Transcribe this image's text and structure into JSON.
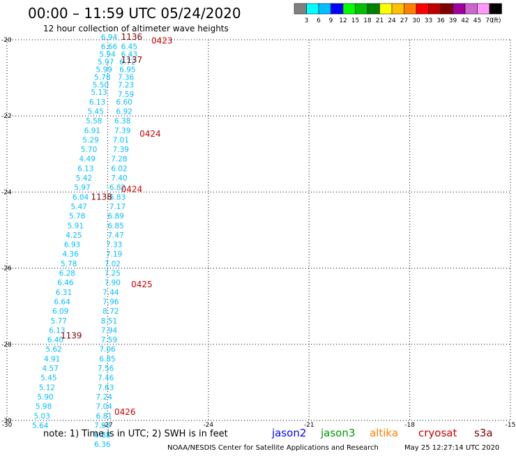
{
  "header": {
    "title": "00:00 – 11:59 UTC 05/24/2020",
    "subtitle": "12 hour collection of altimeter wave heights"
  },
  "colorbar": {
    "colors": [
      "#808080",
      "#00ffff",
      "#00bfff",
      "#0000ff",
      "#00ff00",
      "#00c000",
      "#008000",
      "#ffff00",
      "#ffc000",
      "#ff8000",
      "#ff0000",
      "#c00000",
      "#800000",
      "#a000a0",
      "#cc66cc",
      "#ff99ff",
      "#000000"
    ],
    "labels": [
      "3",
      "6",
      "9",
      "12",
      "15",
      "18",
      "21",
      "24",
      "27",
      "30",
      "33",
      "36",
      "39",
      "42",
      "45",
      "70"
    ],
    "unit": "(ft)"
  },
  "axes": {
    "x_ticks": [
      {
        "value": -30,
        "label": "-30"
      },
      {
        "value": -27,
        "label": "-27"
      },
      {
        "value": -24,
        "label": "-24"
      },
      {
        "value": -21,
        "label": "-21"
      },
      {
        "value": -18,
        "label": "-18"
      },
      {
        "value": -15,
        "label": "-15"
      }
    ],
    "y_ticks": [
      {
        "value": -20,
        "label": "-20"
      },
      {
        "value": -22,
        "label": "-22"
      },
      {
        "value": -24,
        "label": "-24"
      },
      {
        "value": -26,
        "label": "-26"
      },
      {
        "value": -28,
        "label": "-28"
      },
      {
        "value": -30,
        "label": "-30"
      }
    ],
    "xlim": [
      -30,
      -15
    ],
    "ylim": [
      -30,
      -20
    ]
  },
  "chart_data": {
    "type": "scatter",
    "x_axis": "longitude",
    "y_axis": "latitude",
    "xlim": [
      -30,
      -15
    ],
    "ylim": [
      -30,
      -20
    ],
    "grid": true,
    "swh_color": "#00bfff",
    "time_color": "#cc0000",
    "time_dark_color": "#800000",
    "track_a": [
      {
        "lon": -27.2,
        "lat": -20.0,
        "v": "6.94"
      },
      {
        "lon": -27.2,
        "lat": -20.25,
        "v": "6.66"
      },
      {
        "lon": -27.25,
        "lat": -20.45,
        "v": "5.94"
      },
      {
        "lon": -27.3,
        "lat": -20.65,
        "v": "5.97"
      },
      {
        "lon": -27.35,
        "lat": -20.85,
        "v": "5.99"
      },
      {
        "lon": -27.4,
        "lat": -21.05,
        "v": "5.78"
      },
      {
        "lon": -27.45,
        "lat": -21.25,
        "v": "5.50"
      },
      {
        "lon": -27.5,
        "lat": -21.45,
        "v": "5.13"
      },
      {
        "lon": -27.55,
        "lat": -21.7,
        "v": "6.13"
      },
      {
        "lon": -27.6,
        "lat": -21.95,
        "v": "5.45"
      },
      {
        "lon": -27.65,
        "lat": -22.2,
        "v": "5.58"
      },
      {
        "lon": -27.7,
        "lat": -22.45,
        "v": "6.91"
      },
      {
        "lon": -27.75,
        "lat": -22.7,
        "v": "5.29"
      },
      {
        "lon": -27.8,
        "lat": -22.95,
        "v": "5.70"
      },
      {
        "lon": -27.85,
        "lat": -23.2,
        "v": "4.49"
      },
      {
        "lon": -27.9,
        "lat": -23.45,
        "v": "6.13"
      },
      {
        "lon": -27.95,
        "lat": -23.7,
        "v": "5.42"
      },
      {
        "lon": -28.0,
        "lat": -23.95,
        "v": "5.97"
      },
      {
        "lon": -28.05,
        "lat": -24.2,
        "v": "6.04"
      },
      {
        "lon": -28.1,
        "lat": -24.45,
        "v": "5.47"
      },
      {
        "lon": -28.15,
        "lat": -24.7,
        "v": "5.78"
      },
      {
        "lon": -28.2,
        "lat": -24.95,
        "v": "5.91"
      },
      {
        "lon": -28.25,
        "lat": -25.2,
        "v": "4.25"
      },
      {
        "lon": -28.3,
        "lat": -25.45,
        "v": "6.93"
      },
      {
        "lon": -28.35,
        "lat": -25.7,
        "v": "4.36"
      },
      {
        "lon": -28.4,
        "lat": -25.95,
        "v": "5.78"
      },
      {
        "lon": -28.45,
        "lat": -26.2,
        "v": "6.28"
      },
      {
        "lon": -28.5,
        "lat": -26.45,
        "v": "6.46"
      },
      {
        "lon": -28.55,
        "lat": -26.7,
        "v": "6.31"
      },
      {
        "lon": -28.6,
        "lat": -26.95,
        "v": "6.64"
      },
      {
        "lon": -28.65,
        "lat": -27.2,
        "v": "6.09"
      },
      {
        "lon": -28.7,
        "lat": -27.45,
        "v": "5.77"
      },
      {
        "lon": -28.75,
        "lat": -27.7,
        "v": "6.13"
      },
      {
        "lon": -28.8,
        "lat": -27.95,
        "v": "6.40"
      },
      {
        "lon": -28.85,
        "lat": -28.2,
        "v": "5.62"
      },
      {
        "lon": -28.9,
        "lat": -28.45,
        "v": "4.91"
      },
      {
        "lon": -28.95,
        "lat": -28.7,
        "v": "4.57"
      },
      {
        "lon": -29.0,
        "lat": -28.95,
        "v": "5.45"
      },
      {
        "lon": -29.05,
        "lat": -29.2,
        "v": "5.12"
      },
      {
        "lon": -29.1,
        "lat": -29.45,
        "v": "5.90"
      },
      {
        "lon": -29.15,
        "lat": -29.7,
        "v": "5.98"
      },
      {
        "lon": -29.2,
        "lat": -29.95,
        "v": "5.03"
      },
      {
        "lon": -29.25,
        "lat": -30.2,
        "v": "5.64"
      }
    ],
    "track_b": [
      {
        "lon": -26.6,
        "lat": -20.25,
        "v": "6.45"
      },
      {
        "lon": -26.6,
        "lat": -20.45,
        "v": "6.43"
      },
      {
        "lon": -26.65,
        "lat": -20.65,
        "v": "6.72"
      },
      {
        "lon": -26.65,
        "lat": -20.85,
        "v": "6.95"
      },
      {
        "lon": -26.7,
        "lat": -21.05,
        "v": "7.36"
      },
      {
        "lon": -26.7,
        "lat": -21.25,
        "v": "7.23"
      },
      {
        "lon": -26.7,
        "lat": -21.5,
        "v": "7.59"
      },
      {
        "lon": -26.75,
        "lat": -21.7,
        "v": "6.60"
      },
      {
        "lon": -26.75,
        "lat": -21.95,
        "v": "6.92"
      },
      {
        "lon": -26.8,
        "lat": -22.2,
        "v": "6.38"
      },
      {
        "lon": -26.8,
        "lat": -22.45,
        "v": "7.39"
      },
      {
        "lon": -26.85,
        "lat": -22.7,
        "v": "7.01"
      },
      {
        "lon": -26.85,
        "lat": -22.95,
        "v": "7.39"
      },
      {
        "lon": -26.9,
        "lat": -23.2,
        "v": "7.28"
      },
      {
        "lon": -26.9,
        "lat": -23.45,
        "v": "6.02"
      },
      {
        "lon": -26.9,
        "lat": -23.7,
        "v": "7.40"
      },
      {
        "lon": -26.95,
        "lat": -23.95,
        "v": "6.82"
      },
      {
        "lon": -26.95,
        "lat": -24.2,
        "v": "6.83"
      },
      {
        "lon": -26.95,
        "lat": -24.45,
        "v": "7.17"
      },
      {
        "lon": -27.0,
        "lat": -24.7,
        "v": "6.89"
      },
      {
        "lon": -27.0,
        "lat": -24.95,
        "v": "6.85"
      },
      {
        "lon": -27.0,
        "lat": -25.2,
        "v": "7.47"
      },
      {
        "lon": -27.05,
        "lat": -25.45,
        "v": "7.33"
      },
      {
        "lon": -27.05,
        "lat": -25.7,
        "v": "7.19"
      },
      {
        "lon": -27.1,
        "lat": -25.95,
        "v": "7.02"
      },
      {
        "lon": -27.1,
        "lat": -26.2,
        "v": "7.25"
      },
      {
        "lon": -27.1,
        "lat": -26.45,
        "v": "7.90"
      },
      {
        "lon": -27.15,
        "lat": -26.7,
        "v": "7.44"
      },
      {
        "lon": -27.15,
        "lat": -26.95,
        "v": "7.96"
      },
      {
        "lon": -27.15,
        "lat": -27.2,
        "v": "8.72"
      },
      {
        "lon": -27.2,
        "lat": -27.45,
        "v": "8.51"
      },
      {
        "lon": -27.2,
        "lat": -27.7,
        "v": "7.94"
      },
      {
        "lon": -27.2,
        "lat": -27.95,
        "v": "7.59"
      },
      {
        "lon": -27.25,
        "lat": -28.2,
        "v": "7.06"
      },
      {
        "lon": -27.25,
        "lat": -28.45,
        "v": "6.85"
      },
      {
        "lon": -27.3,
        "lat": -28.7,
        "v": "7.56"
      },
      {
        "lon": -27.3,
        "lat": -28.95,
        "v": "7.46"
      },
      {
        "lon": -27.3,
        "lat": -29.2,
        "v": "7.63"
      },
      {
        "lon": -27.35,
        "lat": -29.45,
        "v": "7.24"
      },
      {
        "lon": -27.35,
        "lat": -29.7,
        "v": "7.04"
      },
      {
        "lon": -27.35,
        "lat": -29.95,
        "v": "6.81"
      },
      {
        "lon": -27.4,
        "lat": -30.2,
        "v": "7.93"
      }
    ],
    "extra_labels": [
      {
        "lon": -27.4,
        "lat": -30.45,
        "v": "6.88"
      },
      {
        "lon": -27.4,
        "lat": -30.7,
        "v": "6.36"
      }
    ],
    "time_labels": [
      {
        "lon": -26.6,
        "lat": -20.0,
        "v": "1136",
        "dark": true
      },
      {
        "lon": -25.7,
        "lat": -20.1,
        "v": "0423",
        "dark": false
      },
      {
        "lon": -26.6,
        "lat": -20.6,
        "v": "1137",
        "dark": true
      },
      {
        "lon": -26.05,
        "lat": -22.55,
        "v": "0424",
        "dark": false
      },
      {
        "lon": -26.6,
        "lat": -24.0,
        "v": "0424",
        "dark": false
      },
      {
        "lon": -27.5,
        "lat": -24.2,
        "v": "1138",
        "dark": true
      },
      {
        "lon": -26.3,
        "lat": -26.5,
        "v": "0425",
        "dark": false
      },
      {
        "lon": -28.4,
        "lat": -27.85,
        "v": "1139",
        "dark": true
      },
      {
        "lon": -26.8,
        "lat": -29.85,
        "v": "0426",
        "dark": false
      }
    ]
  },
  "footer": {
    "note": "note: 1) Time is in UTC; 2) SWH is in feet",
    "legend": [
      {
        "label": "jason2",
        "color": "#0000ff"
      },
      {
        "label": "jason3",
        "color": "#009900"
      },
      {
        "label": "altika",
        "color": "#ff8000"
      },
      {
        "label": "cryosat",
        "color": "#cc0000"
      },
      {
        "label": "s3a",
        "color": "#800000"
      }
    ],
    "credit": "NOAA/NESDIS Center for Satellite Applications and Research",
    "timestamp": "May 25 12:27:14 UTC 2020"
  }
}
